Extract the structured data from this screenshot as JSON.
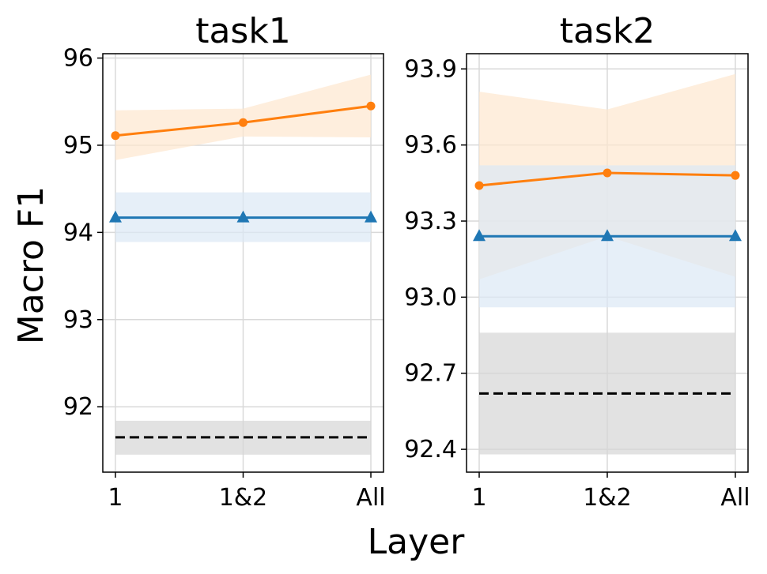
{
  "chart_data": {
    "type": "line",
    "xlabel": "Layer",
    "ylabel": "Macro F1",
    "categories": [
      "1",
      "1&2",
      "All"
    ],
    "panels": [
      {
        "title": "task1",
        "ylim": [
          91.25,
          96.05
        ],
        "yticks": [
          "92",
          "93",
          "94",
          "95",
          "96"
        ],
        "grid": true,
        "series": [
          {
            "color": "#ff7f0e",
            "marker": "circle",
            "values": [
              95.11,
              95.26,
              95.45
            ],
            "band_low": [
              94.83,
              95.1,
              95.09
            ],
            "band_high": [
              95.4,
              95.42,
              95.81
            ],
            "band_color": "#fde7cf"
          },
          {
            "color": "#1f77b4",
            "marker": "triangle",
            "values": [
              94.17,
              94.17,
              94.17
            ],
            "band_low": [
              93.89,
              93.89,
              93.89
            ],
            "band_high": [
              94.46,
              94.46,
              94.46
            ],
            "band_color": "#dbe8f5"
          },
          {
            "color": "#000000",
            "marker": "none",
            "dashed": true,
            "values": [
              91.65,
              91.65,
              91.65
            ],
            "band_low": [
              91.45,
              91.45,
              91.45
            ],
            "band_high": [
              91.84,
              91.84,
              91.84
            ],
            "band_color": "#d6d6d6"
          }
        ]
      },
      {
        "title": "task2",
        "ylim": [
          92.31,
          93.96
        ],
        "yticks": [
          "92.4",
          "92.7",
          "93.0",
          "93.3",
          "93.6",
          "93.9"
        ],
        "grid": true,
        "series": [
          {
            "color": "#ff7f0e",
            "marker": "circle",
            "values": [
              93.44,
              93.49,
              93.48
            ],
            "band_low": [
              93.07,
              93.24,
              93.08
            ],
            "band_high": [
              93.81,
              93.74,
              93.88
            ],
            "band_color": "#fde7cf"
          },
          {
            "color": "#1f77b4",
            "marker": "triangle",
            "values": [
              93.24,
              93.24,
              93.24
            ],
            "band_low": [
              92.96,
              92.96,
              92.96
            ],
            "band_high": [
              93.52,
              93.52,
              93.52
            ],
            "band_color": "#dbe8f5"
          },
          {
            "color": "#000000",
            "marker": "none",
            "dashed": true,
            "values": [
              92.62,
              92.62,
              92.62
            ],
            "band_low": [
              92.38,
              92.38,
              92.38
            ],
            "band_high": [
              92.86,
              92.86,
              92.86
            ],
            "band_color": "#d6d6d6"
          }
        ]
      }
    ]
  }
}
